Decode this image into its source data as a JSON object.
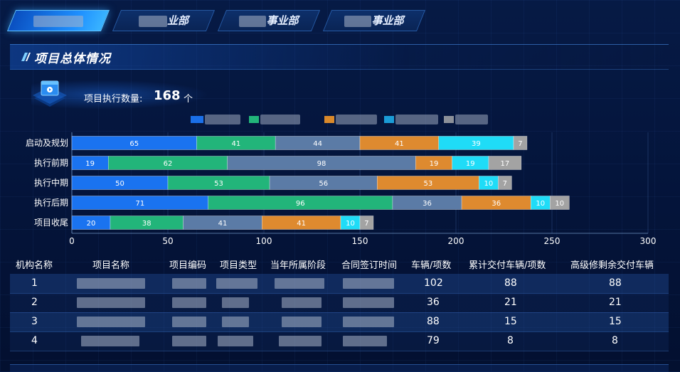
{
  "tabs": [
    {
      "label": "",
      "active": true
    },
    {
      "label": "业部",
      "active": false
    },
    {
      "label": "事业部",
      "active": false
    },
    {
      "label": "事业部",
      "active": false
    }
  ],
  "section": {
    "title": "项目总体情况"
  },
  "stat": {
    "label": "项目执行数量:",
    "value": "168",
    "unit": "个"
  },
  "legend_colors": [
    "#1a6fe8",
    "#22b57a",
    "#d9892b",
    "#1a9bd6",
    "#8c9099"
  ],
  "chart_data": {
    "type": "bar",
    "orientation": "horizontal",
    "stacked": true,
    "categories": [
      "启动及规划",
      "执行前期",
      "执行中期",
      "执行后期",
      "项目收尾"
    ],
    "series": [
      {
        "color": "#1a73f0",
        "values": [
          65,
          19,
          50,
          71,
          20
        ]
      },
      {
        "color": "#22b57a",
        "values": [
          41,
          62,
          53,
          96,
          38
        ]
      },
      {
        "color": "#5b7ba6",
        "values": [
          44,
          98,
          56,
          36,
          41
        ]
      },
      {
        "color": "#de8a2f",
        "values": [
          41,
          19,
          53,
          36,
          41
        ]
      },
      {
        "color": "#1fdcf7",
        "values": [
          39,
          19,
          10,
          10,
          10
        ]
      },
      {
        "color": "#a3a3a3",
        "values": [
          7,
          17,
          7,
          10,
          7
        ]
      }
    ],
    "xlim": [
      0,
      300
    ],
    "xticks": [
      0,
      50,
      100,
      150,
      200,
      250,
      300
    ],
    "grid": true
  },
  "table": {
    "headers": [
      "机构名称",
      "项目名称",
      "项目编码",
      "项目类型",
      "当年所属阶段",
      "合同签订时间",
      "车辆/项数",
      "累计交付车辆/项数",
      "高级修剩余交付车辆"
    ],
    "rows": [
      {
        "no": "1",
        "vehicles": "102",
        "delivered": "88",
        "remaining": "88"
      },
      {
        "no": "2",
        "vehicles": "36",
        "delivered": "21",
        "remaining": "21"
      },
      {
        "no": "3",
        "vehicles": "88",
        "delivered": "15",
        "remaining": "15"
      },
      {
        "no": "4",
        "vehicles": "79",
        "delivered": "8",
        "remaining": "8"
      }
    ]
  }
}
